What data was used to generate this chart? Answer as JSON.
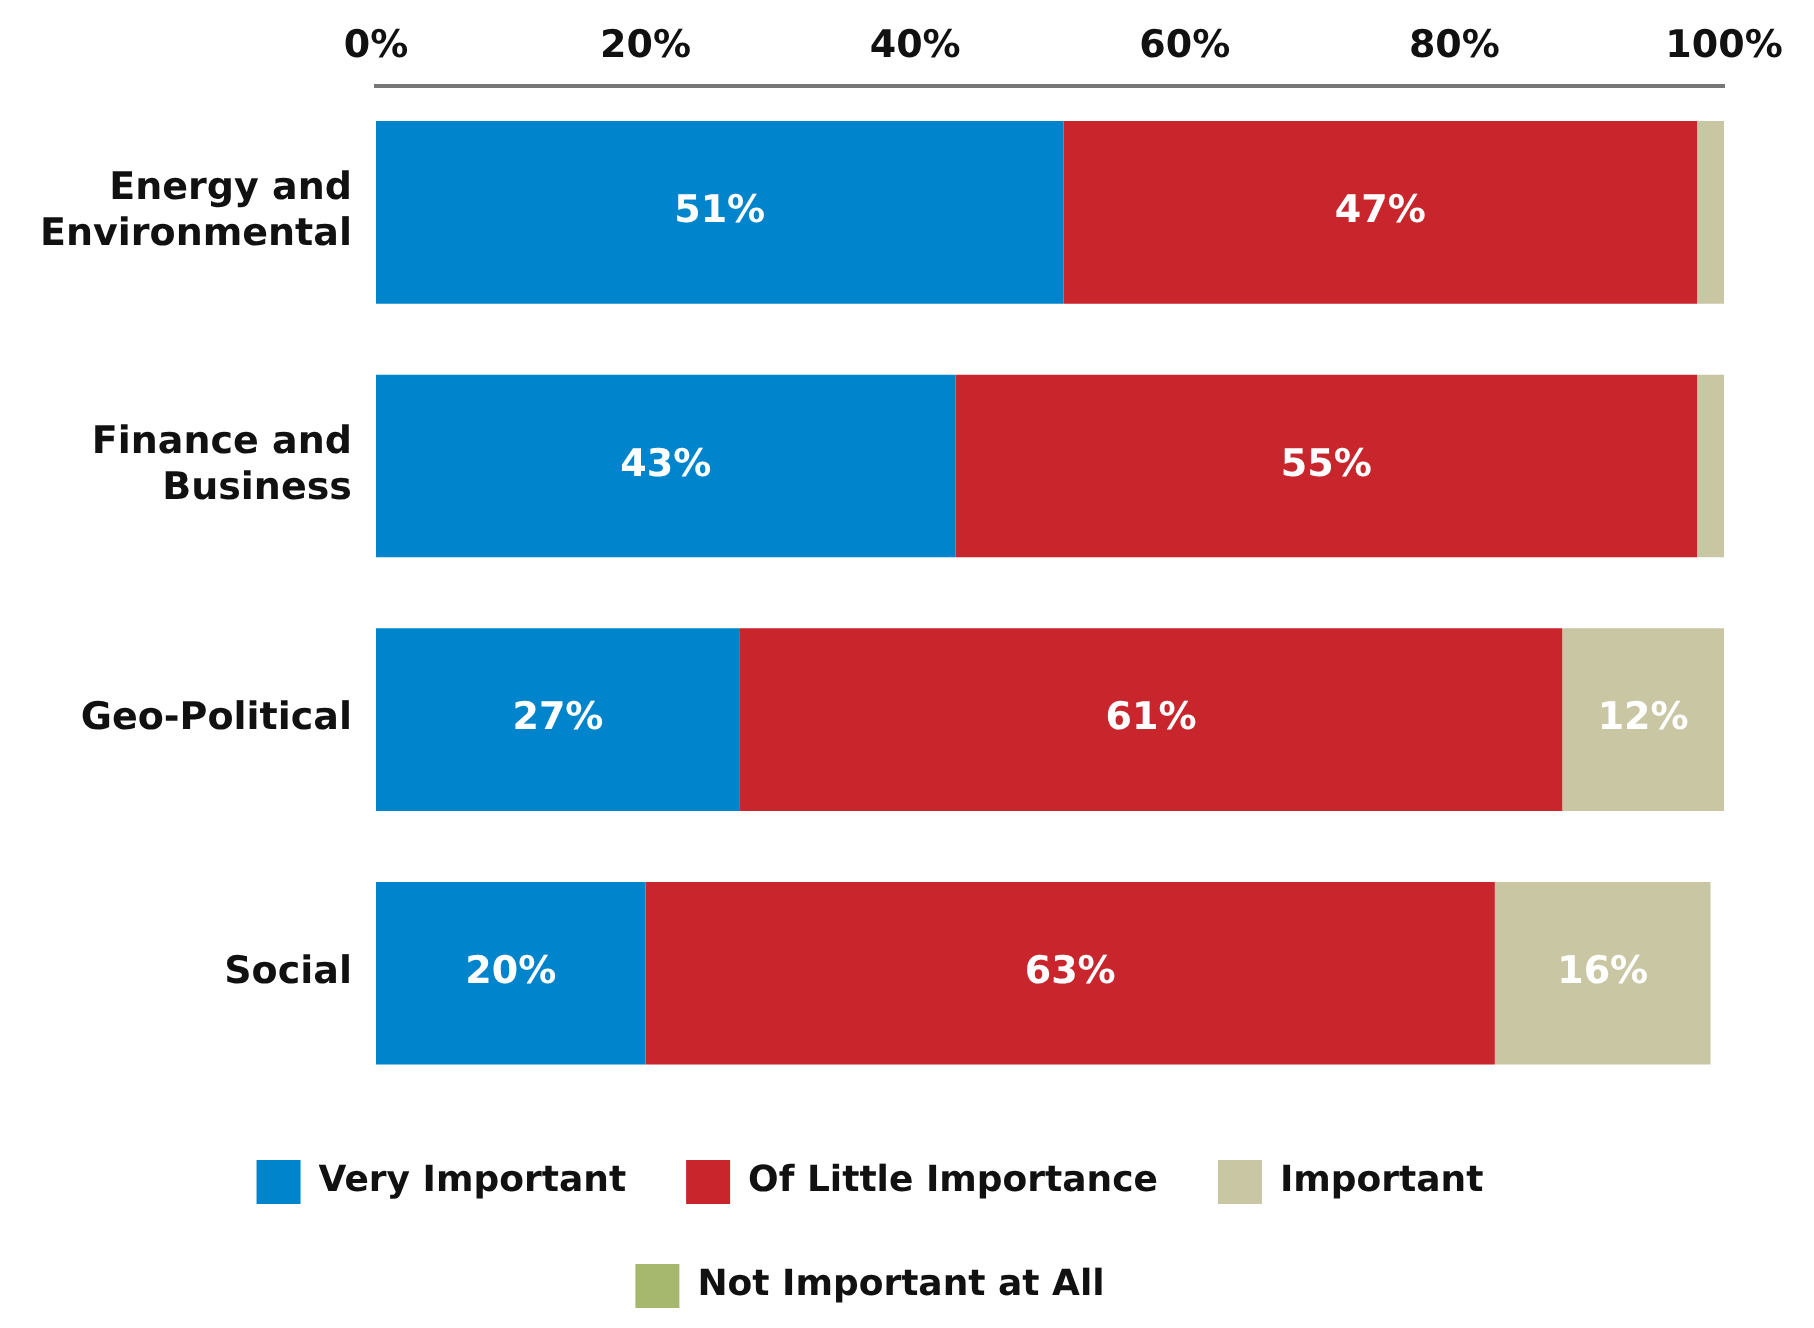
{
  "chart_data": {
    "type": "bar",
    "orientation": "horizontal",
    "stacked": true,
    "categories": [
      "Energy and Environmental",
      "Finance and Business",
      "Geo-Political",
      "Social"
    ],
    "series": [
      {
        "name": "Very Important",
        "color": "#0085cc",
        "values": [
          51,
          43,
          27,
          20
        ],
        "value_labels": [
          "51%",
          "43%",
          "27%",
          "20%"
        ]
      },
      {
        "name": "Of Little Importance",
        "color": "#c9252d",
        "values": [
          47,
          55,
          61,
          63
        ],
        "value_labels": [
          "47%",
          "55%",
          "61%",
          "63%"
        ]
      },
      {
        "name": "Important",
        "color": "#c9c6a3",
        "values": [
          2,
          2,
          12,
          16
        ],
        "value_labels": [
          null,
          null,
          "12%",
          "16%"
        ]
      },
      {
        "name": "Not Important at All",
        "color": "#a5b86e",
        "values": [
          0,
          0,
          0,
          0
        ],
        "value_labels": [
          null,
          null,
          null,
          null
        ]
      }
    ],
    "xlim": [
      0,
      100
    ],
    "xticks": [
      {
        "value": 0,
        "label": "0%"
      },
      {
        "value": 20,
        "label": "20%"
      },
      {
        "value": 40,
        "label": "40%"
      },
      {
        "value": 60,
        "label": "60%"
      },
      {
        "value": 80,
        "label": "80%"
      },
      {
        "value": 100,
        "label": "100%"
      }
    ],
    "grid": false,
    "legend": "bottom"
  }
}
